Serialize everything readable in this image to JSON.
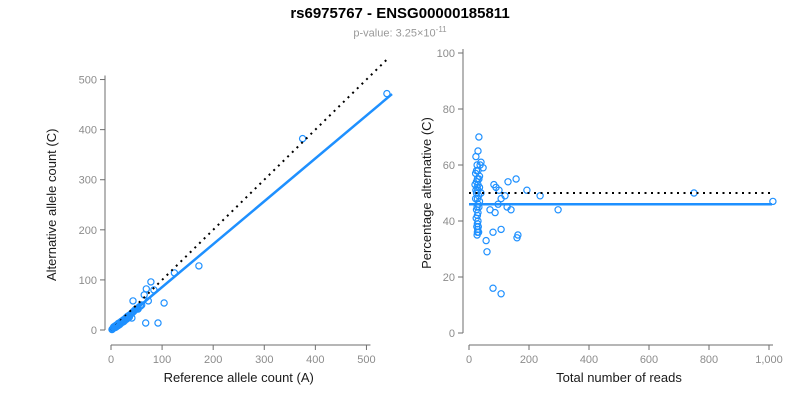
{
  "header": {
    "title": "rs6975767 - ENSG00000185811",
    "subtitle_prefix": "p-value: ",
    "subtitle_base": "3.25×10",
    "subtitle_exponent": "-11"
  },
  "accent_color": "#1E90FF",
  "chart_data": [
    {
      "type": "scatter",
      "name": "allele-count-scatter",
      "xlabel": "Reference allele count (A)",
      "ylabel": "Alternative allele count (C)",
      "xlim": [
        0,
        550
      ],
      "ylim": [
        0,
        545
      ],
      "grid": false,
      "legend": "none",
      "point_color": "#1E90FF",
      "xticks": {
        "values": [
          0,
          100,
          200,
          300,
          400,
          500
        ],
        "labels": [
          "0",
          "100",
          "200",
          "300",
          "400",
          "500"
        ]
      },
      "yticks": {
        "values": [
          0,
          100,
          200,
          300,
          400,
          500
        ],
        "labels": [
          "0",
          "100",
          "200",
          "300",
          "400",
          "500"
        ]
      },
      "lines": [
        {
          "name": "identity-line",
          "style": "dotted",
          "color": "#000000",
          "from": [
            0,
            0
          ],
          "to": [
            545,
            545
          ]
        },
        {
          "name": "regression-line",
          "style": "solid",
          "color": "#1E90FF",
          "from": [
            0,
            0
          ],
          "to": [
            550,
            471
          ]
        }
      ],
      "points": [
        [
          2,
          1
        ],
        [
          3,
          2
        ],
        [
          4,
          3
        ],
        [
          5,
          4
        ],
        [
          5,
          6
        ],
        [
          6,
          5
        ],
        [
          7,
          7
        ],
        [
          8,
          5
        ],
        [
          8,
          8
        ],
        [
          9,
          7
        ],
        [
          10,
          6
        ],
        [
          10,
          9
        ],
        [
          11,
          10
        ],
        [
          12,
          8
        ],
        [
          13,
          11
        ],
        [
          14,
          9
        ],
        [
          14,
          13
        ],
        [
          15,
          12
        ],
        [
          16,
          14
        ],
        [
          17,
          11
        ],
        [
          18,
          15
        ],
        [
          19,
          13
        ],
        [
          20,
          17
        ],
        [
          21,
          15
        ],
        [
          22,
          18
        ],
        [
          23,
          16
        ],
        [
          24,
          20
        ],
        [
          25,
          17
        ],
        [
          26,
          21
        ],
        [
          27,
          19
        ],
        [
          28,
          23
        ],
        [
          29,
          21
        ],
        [
          30,
          25
        ],
        [
          31,
          22
        ],
        [
          32,
          27
        ],
        [
          33,
          24
        ],
        [
          35,
          29
        ],
        [
          36,
          26
        ],
        [
          38,
          31
        ],
        [
          40,
          33
        ],
        [
          41,
          24
        ],
        [
          42,
          35
        ],
        [
          44,
          37
        ],
        [
          46,
          39
        ],
        [
          48,
          41
        ],
        [
          50,
          42
        ],
        [
          53,
          42
        ],
        [
          43,
          58
        ],
        [
          55,
          46
        ],
        [
          58,
          48
        ],
        [
          60,
          50
        ],
        [
          65,
          70
        ],
        [
          69,
          82
        ],
        [
          73,
          58
        ],
        [
          78,
          96
        ],
        [
          84,
          80
        ],
        [
          68,
          14
        ],
        [
          92,
          14
        ],
        [
          104,
          54
        ],
        [
          124,
          114
        ],
        [
          172,
          128
        ],
        [
          375,
          382
        ],
        [
          540,
          472
        ]
      ]
    },
    {
      "type": "scatter",
      "name": "percentage-alternative-scatter",
      "xlabel": "Total number of reads",
      "ylabel": "Percentage alternative (C)",
      "xlim": [
        0,
        1010
      ],
      "ylim": [
        0,
        100
      ],
      "grid": false,
      "legend": "none",
      "point_color": "#1E90FF",
      "xticks": {
        "values": [
          0,
          200,
          400,
          600,
          800,
          1000
        ],
        "labels": [
          "0",
          "200",
          "400",
          "600",
          "800",
          "1,000"
        ]
      },
      "yticks": {
        "values": [
          0,
          20,
          40,
          60,
          80,
          100
        ],
        "labels": [
          "0",
          "20",
          "40",
          "60",
          "80",
          "100"
        ]
      },
      "lines": [
        {
          "name": "expected-percentage-line",
          "style": "dotted",
          "color": "#000000",
          "from": [
            0,
            50
          ],
          "to": [
            1010,
            50
          ]
        },
        {
          "name": "mean-percentage-line",
          "style": "solid",
          "color": "#1E90FF",
          "from": [
            0,
            46
          ],
          "to": [
            1010,
            46
          ]
        }
      ],
      "points": [
        [
          33,
          70
        ],
        [
          30,
          65
        ],
        [
          23,
          63
        ],
        [
          40,
          61
        ],
        [
          27,
          60
        ],
        [
          37,
          60
        ],
        [
          47,
          59
        ],
        [
          25,
          58
        ],
        [
          30,
          58
        ],
        [
          22,
          57
        ],
        [
          35,
          56
        ],
        [
          28,
          55
        ],
        [
          33,
          55
        ],
        [
          25,
          54
        ],
        [
          20,
          53
        ],
        [
          30,
          53
        ],
        [
          27,
          52
        ],
        [
          35,
          52
        ],
        [
          23,
          51
        ],
        [
          30,
          51
        ],
        [
          25,
          50
        ],
        [
          40,
          50
        ],
        [
          32,
          49
        ],
        [
          22,
          48
        ],
        [
          28,
          48
        ],
        [
          35,
          47
        ],
        [
          30,
          46
        ],
        [
          27,
          45
        ],
        [
          33,
          45
        ],
        [
          25,
          44
        ],
        [
          30,
          43
        ],
        [
          28,
          42
        ],
        [
          24,
          41
        ],
        [
          30,
          40
        ],
        [
          28,
          39
        ],
        [
          26,
          38
        ],
        [
          31,
          38
        ],
        [
          29,
          37
        ],
        [
          32,
          36
        ],
        [
          28,
          36
        ],
        [
          27,
          35
        ],
        [
          57,
          33
        ],
        [
          60,
          29
        ],
        [
          70,
          44
        ],
        [
          80,
          36
        ],
        [
          80,
          16
        ],
        [
          83,
          53
        ],
        [
          87,
          43
        ],
        [
          90,
          52
        ],
        [
          97,
          46
        ],
        [
          100,
          51
        ],
        [
          107,
          48
        ],
        [
          107,
          37
        ],
        [
          107,
          14
        ],
        [
          120,
          49
        ],
        [
          127,
          45
        ],
        [
          130,
          54
        ],
        [
          140,
          44
        ],
        [
          157,
          55
        ],
        [
          160,
          34
        ],
        [
          163,
          35
        ],
        [
          193,
          51
        ],
        [
          237,
          49
        ],
        [
          297,
          44
        ],
        [
          750,
          50
        ],
        [
          1013,
          47
        ]
      ]
    }
  ]
}
